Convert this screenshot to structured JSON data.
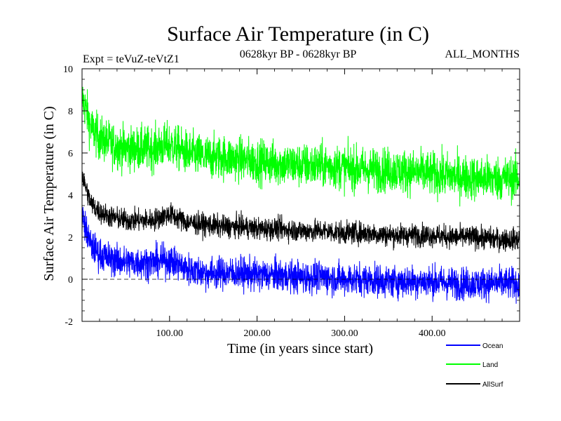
{
  "chart_data": {
    "type": "line",
    "title": "Surface Air Temperature (in C)",
    "subtitle_left": "Expt = teVuZ-teVtZ1",
    "subtitle_center": "0628kyr BP - 0628kyr BP",
    "subtitle_right": "ALL_MONTHS",
    "xlabel": "Time (in years since start)",
    "ylabel": "Surface Air Temperature (in C)",
    "xlim": [
      0,
      500
    ],
    "ylim": [
      -2,
      10
    ],
    "x_ticks": [
      100,
      200,
      300,
      400
    ],
    "x_tick_labels": [
      "100.00",
      "200.00",
      "300.00",
      "400.00"
    ],
    "y_ticks": [
      -2,
      0,
      2,
      4,
      6,
      8,
      10
    ],
    "y_tick_labels": [
      "-2",
      "0",
      "2",
      "4",
      "6",
      "8",
      "10"
    ],
    "zero_line": "dashed",
    "legend_position": "bottom-right",
    "series": [
      {
        "name": "Ocean",
        "color": "#0000ff",
        "x": [
          0,
          5,
          10,
          20,
          30,
          40,
          50,
          60,
          80,
          100,
          120,
          140,
          160,
          180,
          200,
          225,
          250,
          275,
          300,
          325,
          350,
          375,
          400,
          425,
          450,
          475,
          500
        ],
        "y": [
          3.0,
          2.3,
          1.6,
          1.2,
          1.0,
          0.9,
          0.8,
          0.8,
          0.8,
          0.9,
          0.5,
          0.3,
          0.3,
          0.3,
          0.2,
          0.2,
          0.1,
          0.1,
          0.0,
          0.0,
          -0.1,
          -0.1,
          -0.1,
          -0.2,
          -0.2,
          -0.2,
          -0.2
        ],
        "noise": 0.55
      },
      {
        "name": "Land",
        "color": "#00ff00",
        "x": [
          0,
          5,
          10,
          20,
          30,
          40,
          50,
          60,
          80,
          100,
          120,
          140,
          160,
          180,
          200,
          225,
          250,
          275,
          300,
          325,
          350,
          375,
          400,
          425,
          450,
          475,
          500
        ],
        "y": [
          8.6,
          8.0,
          7.2,
          6.7,
          6.5,
          6.3,
          6.2,
          6.2,
          6.2,
          6.4,
          6.0,
          5.8,
          5.8,
          5.7,
          5.6,
          5.5,
          5.4,
          5.4,
          5.3,
          5.2,
          5.2,
          5.1,
          5.0,
          4.9,
          4.8,
          4.8,
          4.8
        ],
        "noise": 0.75
      },
      {
        "name": "AllSurf",
        "color": "#000000",
        "x": [
          0,
          5,
          10,
          20,
          30,
          40,
          50,
          60,
          80,
          100,
          120,
          140,
          160,
          180,
          200,
          225,
          250,
          275,
          300,
          325,
          350,
          375,
          400,
          425,
          450,
          475,
          500
        ],
        "y": [
          4.9,
          4.3,
          3.6,
          3.2,
          3.0,
          2.9,
          2.8,
          2.8,
          2.8,
          3.1,
          2.7,
          2.6,
          2.5,
          2.5,
          2.4,
          2.4,
          2.3,
          2.3,
          2.2,
          2.2,
          2.1,
          2.1,
          2.1,
          2.0,
          2.0,
          1.9,
          1.9
        ],
        "noise": 0.38
      }
    ]
  }
}
